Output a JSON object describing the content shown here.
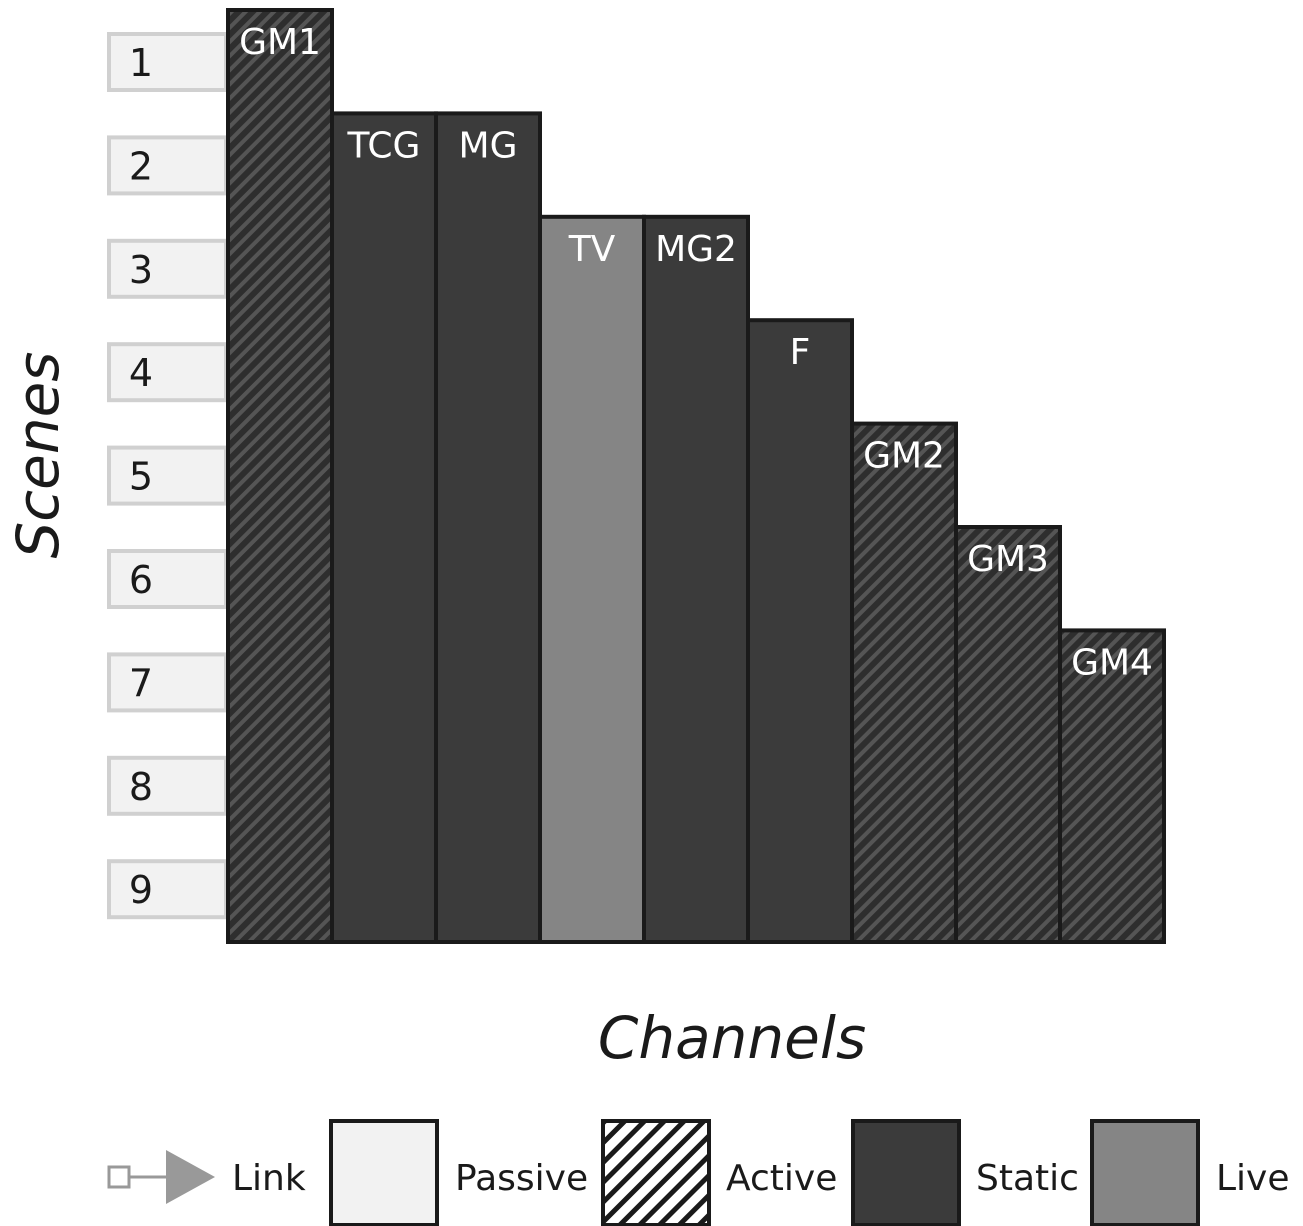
{
  "axes": {
    "y_label": "Scenes",
    "x_label": "Channels"
  },
  "scenes": [
    "1",
    "2",
    "3",
    "4",
    "5",
    "6",
    "7",
    "8",
    "9"
  ],
  "channels": [
    {
      "label": "GM1",
      "type": "active",
      "starts_at_scene": 1
    },
    {
      "label": "TCG",
      "type": "static",
      "starts_at_scene": 2
    },
    {
      "label": "MG",
      "type": "static",
      "starts_at_scene": 2
    },
    {
      "label": "TV",
      "type": "live",
      "starts_at_scene": 3
    },
    {
      "label": "MG2",
      "type": "static",
      "starts_at_scene": 3
    },
    {
      "label": "F",
      "type": "static",
      "starts_at_scene": 4
    },
    {
      "label": "GM2",
      "type": "active",
      "starts_at_scene": 5
    },
    {
      "label": "GM3",
      "type": "active",
      "starts_at_scene": 6
    },
    {
      "label": "GM4",
      "type": "active",
      "starts_at_scene": 7
    }
  ],
  "legend": [
    {
      "key": "link",
      "label": "Link"
    },
    {
      "key": "passive",
      "label": "Passive"
    },
    {
      "key": "active",
      "label": "Active"
    },
    {
      "key": "static",
      "label": "Static"
    },
    {
      "key": "live",
      "label": "Live"
    }
  ],
  "colors": {
    "static": "#3b3b3b",
    "live": "#858585",
    "active_base": "#2e2e2e",
    "active_stripe": "#555555",
    "passive": "#f2f2f2",
    "passive_border": "#d0d0d0",
    "border": "#1a1a1a",
    "link": "#999999"
  }
}
